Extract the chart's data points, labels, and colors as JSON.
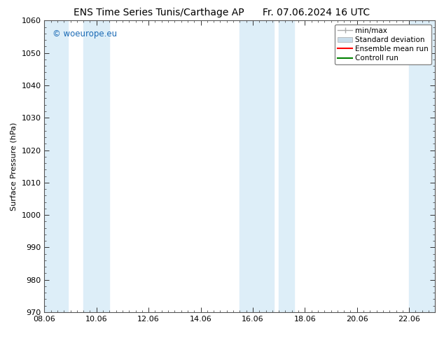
{
  "title": "ENS Time Series Tunis/Carthage AP",
  "title_right": "Fr. 07.06.2024 16 UTC",
  "ylabel": "Surface Pressure (hPa)",
  "ylim": [
    970,
    1060
  ],
  "yticks": [
    970,
    980,
    990,
    1000,
    1010,
    1020,
    1030,
    1040,
    1050,
    1060
  ],
  "xlim": [
    0,
    15
  ],
  "xtick_labels": [
    "08.06",
    "10.06",
    "12.06",
    "14.06",
    "16.06",
    "18.06",
    "20.06",
    "22.06"
  ],
  "xtick_positions": [
    0,
    2,
    4,
    6,
    8,
    10,
    12,
    14
  ],
  "shaded_bands": [
    {
      "x_start": 0.0,
      "x_end": 0.9,
      "color": "#ddeef8"
    },
    {
      "x_start": 1.5,
      "x_end": 2.5,
      "color": "#ddeef8"
    },
    {
      "x_start": 7.5,
      "x_end": 8.8,
      "color": "#ddeef8"
    },
    {
      "x_start": 9.0,
      "x_end": 9.6,
      "color": "#ddeef8"
    },
    {
      "x_start": 14.0,
      "x_end": 15.0,
      "color": "#ddeef8"
    }
  ],
  "watermark": "© woeurope.eu",
  "watermark_color": "#1a6ab5",
  "bg_color": "#ffffff",
  "plot_bg_color": "#ffffff",
  "legend_items": [
    {
      "label": "min/max",
      "color": "#aaaaaa",
      "style": "error"
    },
    {
      "label": "Standard deviation",
      "color": "#c8dcea",
      "style": "box"
    },
    {
      "label": "Ensemble mean run",
      "color": "#ff0000",
      "style": "line"
    },
    {
      "label": "Controll run",
      "color": "#008000",
      "style": "line"
    }
  ],
  "title_fontsize": 10,
  "label_fontsize": 8,
  "tick_fontsize": 8,
  "legend_fontsize": 7.5
}
